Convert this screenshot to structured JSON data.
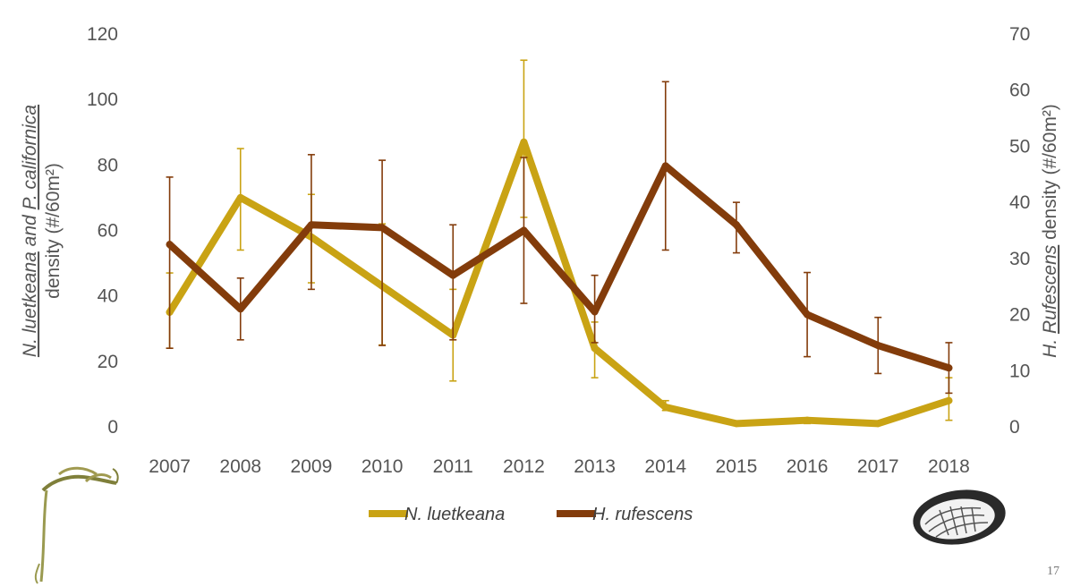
{
  "page_number": "17",
  "chart_data": {
    "type": "line",
    "categories": [
      "2007",
      "2008",
      "2009",
      "2010",
      "2011",
      "2012",
      "2013",
      "2014",
      "2015",
      "2016",
      "2017",
      "2018"
    ],
    "y_left": {
      "label_parts": [
        {
          "text": "N. luetkeana",
          "italic": true,
          "underline": true
        },
        {
          "text": " and ",
          "italic": true,
          "underline": false
        },
        {
          "text": "P. californica",
          "italic": true,
          "underline": true
        }
      ],
      "label_line2": "density (#/60m²)",
      "ylim": [
        0,
        120
      ],
      "ticks": [
        0,
        20,
        40,
        60,
        80,
        100,
        120
      ]
    },
    "y_right": {
      "label_parts": [
        {
          "text": "H. ",
          "italic": true,
          "underline": false
        },
        {
          "text": "Rufescens",
          "italic": true,
          "underline": true
        },
        {
          "text": " density (#/60m²)",
          "italic": false,
          "underline": false
        }
      ],
      "ylim": [
        0,
        70
      ],
      "ticks": [
        0,
        10,
        20,
        30,
        40,
        50,
        60,
        70
      ]
    },
    "grid": false,
    "legend_position": "bottom",
    "series": [
      {
        "name": "N. luetkeana",
        "axis": "left",
        "color": "#C9A314",
        "values": [
          35,
          70,
          58,
          43,
          28,
          87,
          24,
          6,
          1,
          2,
          1,
          8
        ],
        "err_low": [
          24,
          54,
          44,
          25,
          14,
          64,
          15,
          5,
          1,
          1,
          1,
          2
        ],
        "err_high": [
          47,
          85,
          71,
          62,
          42,
          112,
          32,
          8,
          1,
          2,
          1,
          15
        ]
      },
      {
        "name": "H. rufescens",
        "axis": "right",
        "color": "#833C0B",
        "values": [
          32.5,
          21,
          36,
          35.5,
          27,
          35,
          20.5,
          46.5,
          36,
          20,
          14.5,
          10.5
        ],
        "err_low": [
          14,
          15.5,
          24.5,
          14.5,
          15.5,
          22,
          15,
          31.5,
          31,
          12.5,
          9.5,
          6
        ],
        "err_high": [
          44.5,
          26.5,
          48.5,
          47.5,
          36,
          48,
          27,
          61.5,
          40,
          27.5,
          19.5,
          15
        ]
      }
    ]
  },
  "decor": {
    "left_icon": "kelp-icon",
    "right_icon": "abalone-shell-icon"
  }
}
